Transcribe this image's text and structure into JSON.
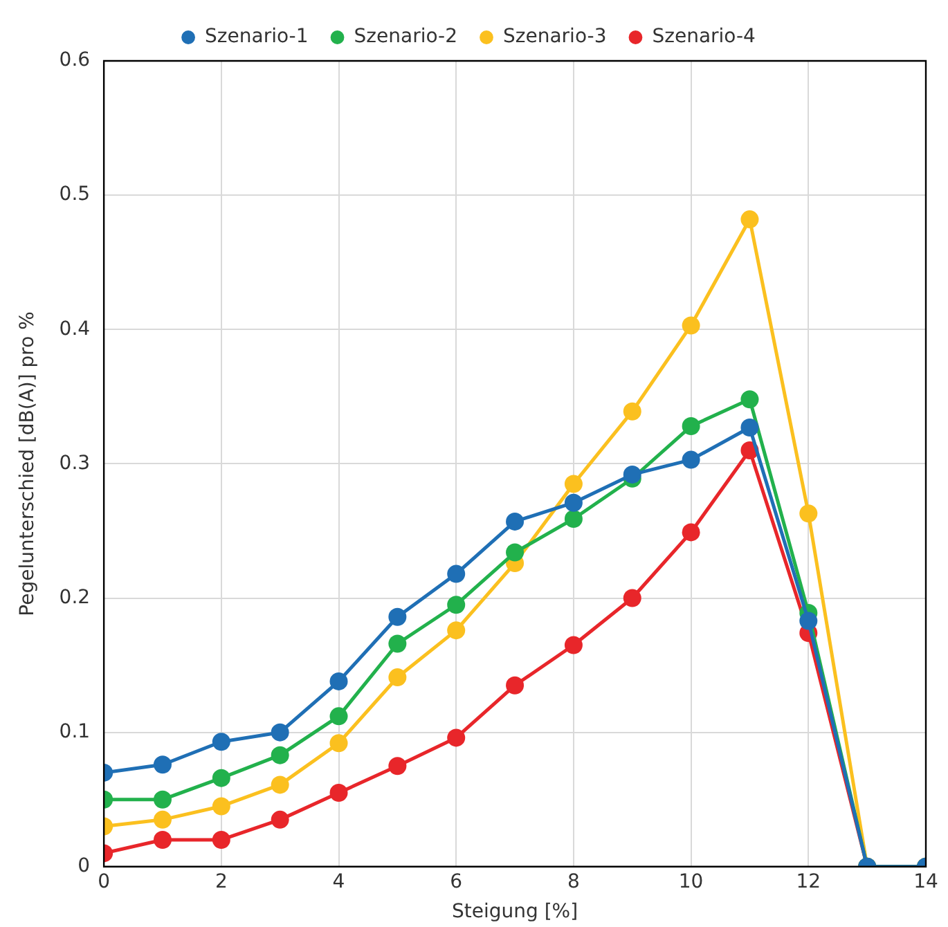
{
  "chart_data": {
    "type": "line",
    "xlabel": "Steigung [%]",
    "ylabel": "Pegelunterschied [dB(A)] pro %",
    "x": [
      0,
      1,
      2,
      3,
      4,
      5,
      6,
      7,
      8,
      9,
      10,
      11,
      12,
      13,
      14
    ],
    "series": [
      {
        "name": "Szenario-1",
        "color": "#1f6fb5",
        "values": [
          0.07,
          0.076,
          0.093,
          0.1,
          0.138,
          0.186,
          0.218,
          0.257,
          0.271,
          0.292,
          0.303,
          0.327,
          0.183,
          0,
          0
        ]
      },
      {
        "name": "Szenario-2",
        "color": "#22b14c",
        "values": [
          0.05,
          0.05,
          0.066,
          0.083,
          0.112,
          0.166,
          0.195,
          0.234,
          0.259,
          0.289,
          0.328,
          0.348,
          0.189,
          0,
          0
        ]
      },
      {
        "name": "Szenario-3",
        "color": "#fbc01f",
        "values": [
          0.03,
          0.035,
          0.045,
          0.061,
          0.092,
          0.141,
          0.176,
          0.226,
          0.285,
          0.339,
          0.403,
          0.482,
          0.263,
          0,
          0
        ]
      },
      {
        "name": "Szenario-4",
        "color": "#e8262a",
        "values": [
          0.01,
          0.02,
          0.02,
          0.035,
          0.055,
          0.075,
          0.096,
          0.135,
          0.165,
          0.2,
          0.249,
          0.31,
          0.174,
          0,
          0
        ]
      }
    ],
    "xlim": [
      0,
      14
    ],
    "xticks": [
      0,
      2,
      4,
      6,
      8,
      10,
      12,
      14
    ],
    "ylim": [
      0,
      0.6
    ],
    "yticks": [
      0,
      0.1,
      0.2,
      0.3,
      0.4,
      0.5,
      0.6
    ],
    "grid": true,
    "legend": "top",
    "marker": "circle",
    "line_style": "solid"
  }
}
